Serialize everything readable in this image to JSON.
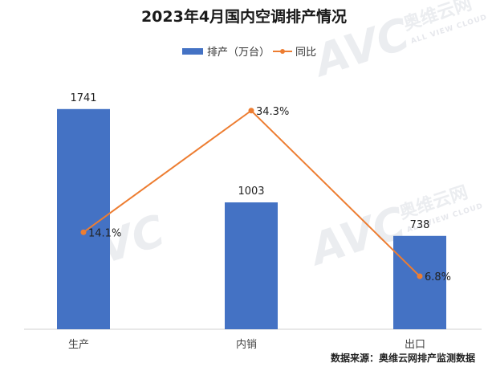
{
  "chart_data": {
    "type": "bar",
    "title": "2023年4月国内空调排产情况",
    "categories": [
      "生产",
      "内销",
      "出口"
    ],
    "series": [
      {
        "name": "排产（万台）",
        "kind": "bar",
        "color": "#4472C4",
        "values": [
          1741,
          1003,
          738
        ],
        "labels": [
          "1741",
          "1003",
          "738"
        ]
      },
      {
        "name": "同比",
        "kind": "line",
        "color": "#ED7D31",
        "values": [
          14.1,
          34.3,
          6.8
        ],
        "labels": [
          "14.1%",
          "34.3%",
          "6.8%"
        ]
      }
    ],
    "ylim": [
      0,
      2000
    ],
    "y2lim": [
      0,
      40
    ],
    "legend": "top-center",
    "grid": false
  },
  "source": "数据来源：奥维云网排产监测数据",
  "watermark": {
    "brand": "AVC",
    "name": "奥维云网",
    "sub": "ALL VIEW CLOUD"
  }
}
